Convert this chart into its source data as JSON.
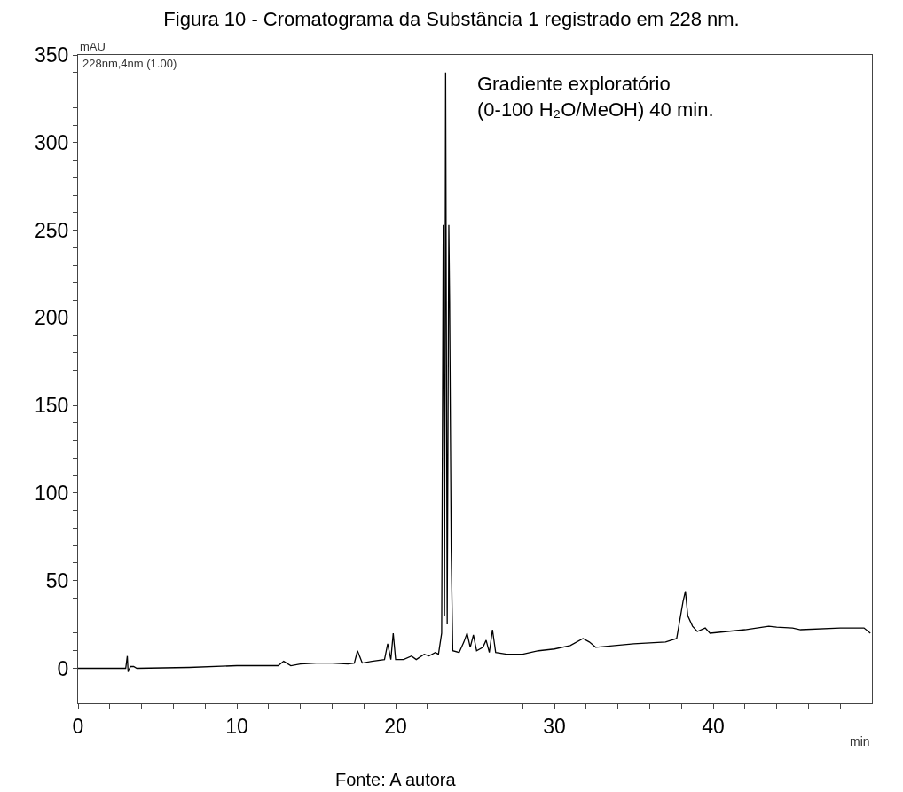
{
  "chart_data": {
    "type": "line",
    "title": "Figura 10 - Cromatograma da Substância 1 registrado em 228 nm.",
    "xlabel": "min",
    "ylabel": "mAU",
    "annotations": [
      "228nm,4nm (1.00)",
      "Gradiente exploratório\n(0-100 H₂O/MeOH) 40 min.",
      "Fonte: A autora"
    ],
    "x": [
      0,
      3.0,
      3.1,
      3.15,
      3.3,
      3.5,
      3.7,
      7,
      10,
      12.6,
      12.95,
      13.4,
      14,
      15,
      16,
      17,
      17.4,
      17.6,
      17.9,
      18.5,
      19.3,
      19.5,
      19.7,
      19.85,
      20.0,
      20.5,
      21,
      21.3,
      21.8,
      22.1,
      22.5,
      22.7,
      22.9,
      23.0,
      23.08,
      23.15,
      23.25,
      23.35,
      23.4,
      23.5,
      23.6,
      24,
      24.3,
      24.5,
      24.7,
      24.9,
      25.1,
      25.5,
      25.7,
      25.9,
      26.1,
      26.3,
      27,
      28,
      29,
      30,
      31,
      31.8,
      32.2,
      32.6,
      35,
      37,
      37.7,
      38.1,
      38.25,
      38.4,
      38.7,
      39,
      39.5,
      39.8,
      42,
      43.5,
      44,
      45,
      45.5,
      48,
      49.5,
      49.9
    ],
    "series": [
      {
        "color": "#000000",
        "values": [
          0,
          0,
          7,
          -2,
          1,
          1,
          0,
          0.5,
          1.5,
          1.5,
          4,
          1.5,
          2.5,
          3,
          3,
          2.5,
          3,
          10,
          3,
          4,
          5,
          14,
          5,
          20,
          5,
          5,
          7,
          5,
          8,
          7,
          9,
          8,
          20,
          253,
          30,
          340,
          25,
          253,
          210,
          68,
          10,
          9,
          15,
          20,
          12,
          19,
          10,
          12,
          16,
          9,
          22,
          9,
          8,
          8,
          10,
          11,
          13,
          17,
          15,
          12,
          14,
          15,
          17,
          38,
          44,
          30,
          24,
          21,
          23,
          20,
          22,
          24,
          23.5,
          23,
          22,
          23,
          23,
          20
        ]
      }
    ],
    "xlim": [
      0,
      50
    ],
    "xticks": [
      0,
      {
        "value": 2,
        "label": null
      },
      {
        "value": 4,
        "label": null
      },
      {
        "value": 6,
        "label": null
      },
      {
        "value": 8,
        "label": null
      },
      10,
      {
        "value": 12,
        "label": null
      },
      {
        "value": 14,
        "label": null
      },
      {
        "value": 16,
        "label": null
      },
      {
        "value": 18,
        "label": null
      },
      20,
      {
        "value": 22,
        "label": null
      },
      {
        "value": 24,
        "label": null
      },
      {
        "value": 26,
        "label": null
      },
      {
        "value": 28,
        "label": null
      },
      30,
      {
        "value": 32,
        "label": null
      },
      {
        "value": 34,
        "label": null
      },
      {
        "value": 36,
        "label": null
      },
      {
        "value": 38,
        "label": null
      },
      40,
      {
        "value": 42,
        "label": null
      },
      {
        "value": 44,
        "label": null
      },
      {
        "value": 46,
        "label": null
      },
      {
        "value": 48,
        "label": null
      }
    ],
    "ylim": [
      -20,
      350
    ],
    "yticks": [
      {
        "value": -10,
        "label": null
      },
      0,
      {
        "value": 10,
        "label": null
      },
      {
        "value": 20,
        "label": null
      },
      {
        "value": 30,
        "label": null
      },
      {
        "value": 40,
        "label": null
      },
      50,
      {
        "value": 60,
        "label": null
      },
      {
        "value": 70,
        "label": null
      },
      {
        "value": 80,
        "label": null
      },
      {
        "value": 90,
        "label": null
      },
      100,
      {
        "value": 110,
        "label": null
      },
      {
        "value": 120,
        "label": null
      },
      {
        "value": 130,
        "label": null
      },
      {
        "value": 140,
        "label": null
      },
      150,
      {
        "value": 160,
        "label": null
      },
      {
        "value": 170,
        "label": null
      },
      {
        "value": 180,
        "label": null
      },
      {
        "value": 190,
        "label": null
      },
      200,
      {
        "value": 210,
        "label": null
      },
      {
        "value": 220,
        "label": null
      },
      {
        "value": 230,
        "label": null
      },
      {
        "value": 240,
        "label": null
      },
      250,
      {
        "value": 260,
        "label": null
      },
      {
        "value": 270,
        "label": null
      },
      {
        "value": 280,
        "label": null
      },
      {
        "value": 290,
        "label": null
      },
      300,
      {
        "value": 310,
        "label": null
      },
      {
        "value": 320,
        "label": null
      },
      {
        "value": 330,
        "label": null
      },
      {
        "value": 340,
        "label": null
      },
      350
    ],
    "marker": "none",
    "line_style": "solid"
  }
}
